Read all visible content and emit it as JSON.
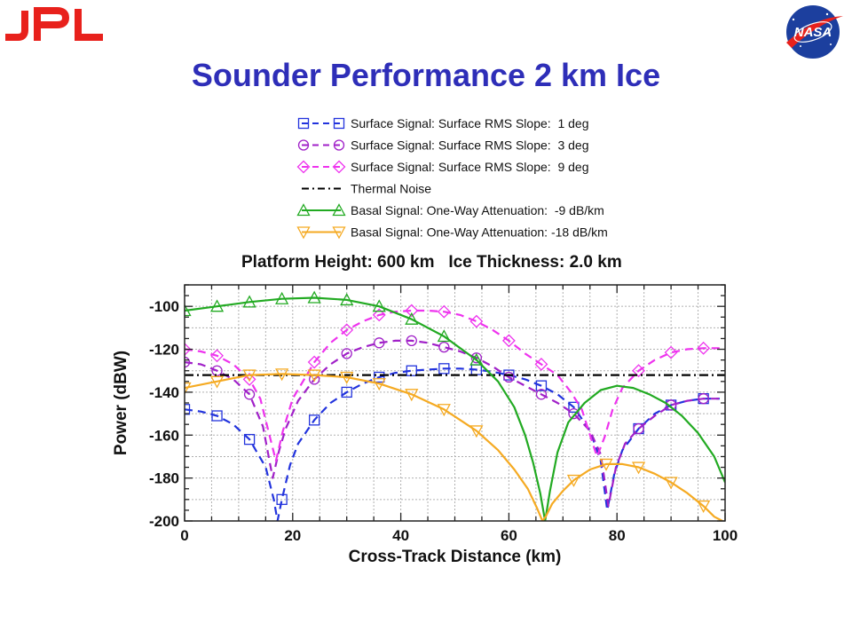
{
  "header": {
    "left_logo": "JPL",
    "right_logo": "NASA",
    "title": "Sounder Performance 2 km Ice"
  },
  "chart_data": {
    "type": "line",
    "subtitle": "Platform Height: 600 km   Ice Thickness: 2.0 km",
    "xlabel": "Cross-Track Distance (km)",
    "ylabel": "Power (dBW)",
    "xlim": [
      0,
      100
    ],
    "ylim": [
      -200,
      -90
    ],
    "xticks": [
      0,
      20,
      40,
      60,
      80,
      100
    ],
    "yticks": [
      -100,
      -120,
      -140,
      -160,
      -180,
      -200
    ],
    "grid": true,
    "legend_position": "top",
    "series": [
      {
        "name": "Surface Signal: Surface RMS Slope:  1 deg",
        "color": "#2233dd",
        "dash": "dashed",
        "marker": "square",
        "x": [
          0,
          3,
          6,
          9,
          12,
          15,
          16.5,
          17.2,
          18,
          19.5,
          21,
          24,
          27,
          30,
          33,
          36,
          39,
          42,
          45,
          48,
          51,
          54,
          57,
          60,
          63,
          66,
          69,
          72,
          75,
          77,
          78.2,
          79.5,
          81,
          84,
          87,
          90,
          93,
          96,
          99
        ],
        "y": [
          -148,
          -149,
          -151,
          -155,
          -162,
          -175,
          -190,
          -200,
          -190,
          -174,
          -164,
          -153,
          -145,
          -140,
          -136,
          -133,
          -131,
          -130,
          -129.5,
          -129,
          -129,
          -129.5,
          -130.5,
          -132,
          -134,
          -137,
          -141,
          -147,
          -158,
          -172,
          -195,
          -178,
          -167,
          -157,
          -150,
          -146,
          -144,
          -143,
          -143
        ]
      },
      {
        "name": "Surface Signal: Surface RMS Slope:  3 deg",
        "color": "#a020c8",
        "dash": "dashed",
        "marker": "circle",
        "x": [
          0,
          3,
          6,
          9,
          12,
          14.5,
          16.3,
          17.5,
          18.7,
          21,
          24,
          27,
          30,
          33,
          36,
          39,
          42,
          45,
          48,
          51,
          54,
          57,
          60,
          63,
          66,
          69,
          72,
          75,
          77,
          78.4,
          79.8,
          81.5,
          84,
          87,
          90,
          93,
          96,
          99
        ],
        "y": [
          -126,
          -127,
          -130,
          -134,
          -141,
          -156,
          -180,
          -167,
          -157,
          -144,
          -134,
          -127,
          -122,
          -119,
          -117,
          -116,
          -116,
          -117,
          -119,
          -121,
          -124,
          -128,
          -133,
          -137,
          -141,
          -145,
          -150,
          -158,
          -169,
          -193,
          -175,
          -164,
          -157,
          -151,
          -146,
          -144,
          -143,
          -143
        ]
      },
      {
        "name": "Surface Signal: Surface RMS Slope:  9 deg",
        "color": "#ee33ee",
        "dash": "dashed",
        "marker": "diamond",
        "x": [
          0,
          3,
          6,
          9,
          12,
          14,
          15.7,
          16.9,
          18.2,
          20,
          24,
          27,
          30,
          33,
          36,
          39,
          42,
          45,
          48,
          51,
          54,
          57,
          60,
          63,
          66,
          69,
          71.5,
          73.5,
          75,
          76.3,
          77.7,
          79.2,
          81,
          84,
          87,
          90,
          93,
          96,
          99
        ],
        "y": [
          -120,
          -121,
          -123,
          -127,
          -134,
          -143,
          -160,
          -172,
          -158,
          -143,
          -126,
          -117,
          -111,
          -107,
          -104,
          -102.5,
          -102,
          -102,
          -102.5,
          -104,
          -107,
          -111,
          -116,
          -122,
          -127,
          -132,
          -140,
          -148,
          -160,
          -170,
          -161,
          -148,
          -138,
          -130,
          -125,
          -121.5,
          -120,
          -119.5,
          -119.5
        ]
      },
      {
        "name": "Thermal Noise",
        "color": "#000000",
        "dash": "dashdot",
        "marker": "none",
        "x": [
          0,
          100
        ],
        "y": [
          -132,
          -132
        ]
      },
      {
        "name": "Basal Signal: One-Way Attenuation:  -9 dB/km",
        "color": "#22aa22",
        "dash": "solid",
        "marker": "triangle-up",
        "x": [
          0,
          6,
          12,
          18,
          24,
          30,
          36,
          42,
          48,
          54,
          58,
          61,
          63,
          64.5,
          65.8,
          66.7,
          67.6,
          69,
          71,
          74,
          77,
          80,
          83,
          86,
          89,
          92,
          95,
          98,
          100
        ],
        "y": [
          -102,
          -100,
          -98,
          -96.5,
          -96,
          -97,
          -100,
          -106,
          -114,
          -125,
          -135,
          -147,
          -160,
          -173,
          -187,
          -200,
          -186,
          -168,
          -154,
          -145,
          -139,
          -137,
          -138,
          -141,
          -145,
          -151,
          -159,
          -170,
          -182
        ]
      },
      {
        "name": "Basal Signal: One-Way Attenuation: -18 dB/km",
        "color": "#f5aa22",
        "dash": "solid",
        "marker": "triangle-down",
        "x": [
          0,
          6,
          12,
          18,
          24,
          30,
          36,
          42,
          48,
          54,
          58,
          61,
          63.5,
          65.2,
          66.2,
          66.8,
          68,
          70,
          72,
          75,
          78,
          81,
          84,
          87,
          90,
          93,
          96,
          98,
          99.5
        ],
        "y": [
          -138,
          -135,
          -132,
          -131.5,
          -132,
          -133,
          -136,
          -141,
          -148,
          -158,
          -167,
          -176,
          -185,
          -194,
          -200,
          -198,
          -192,
          -186,
          -181,
          -176,
          -173.5,
          -173.5,
          -175,
          -178,
          -182,
          -187,
          -193,
          -198,
          -200
        ]
      }
    ]
  }
}
